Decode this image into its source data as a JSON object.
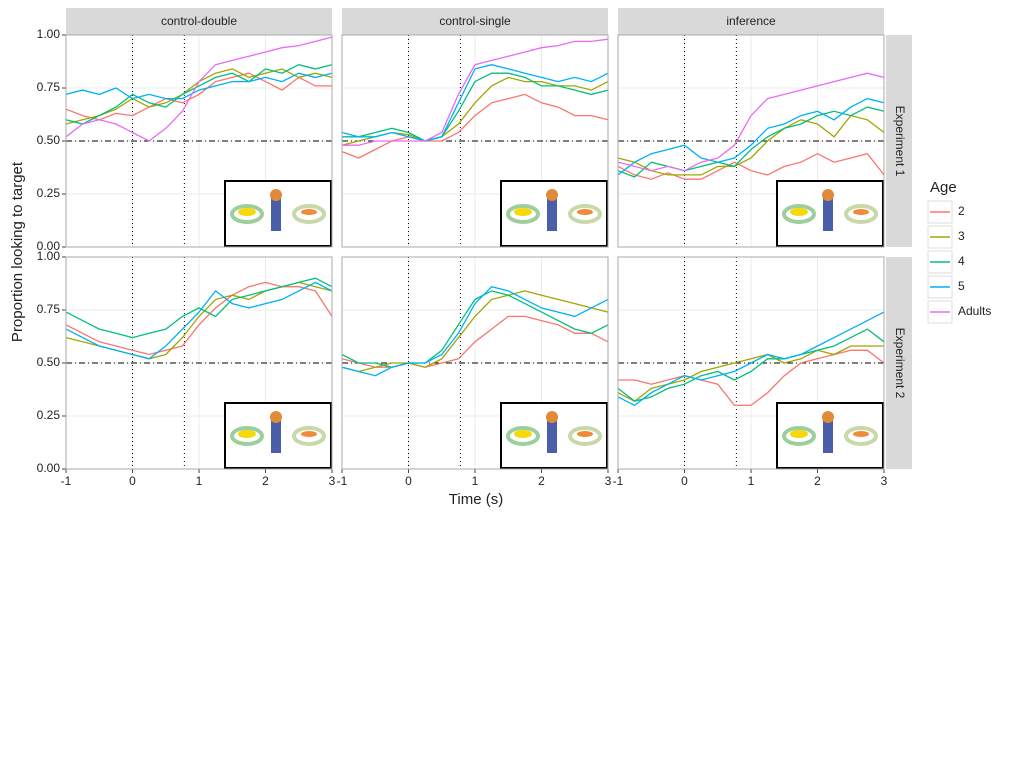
{
  "y_label": "Proportion looking to target",
  "x_label": "Time (s)",
  "facet_columns": [
    "control-double",
    "control-single",
    "inference"
  ],
  "facet_rows": [
    "Experiment 1",
    "Experiment 2"
  ],
  "legend_title": "Age",
  "reference_lines": {
    "h": 0.5,
    "v": [
      0,
      0.78
    ]
  },
  "chart_data": [
    {
      "type": "line",
      "column": 0,
      "row": 0,
      "x": [
        -1,
        -0.75,
        -0.5,
        -0.25,
        0,
        0.25,
        0.5,
        0.75,
        1,
        1.25,
        1.5,
        1.75,
        2,
        2.25,
        2.5,
        2.75,
        3
      ],
      "xlim": [
        -1,
        3
      ],
      "ylim": [
        0,
        1
      ],
      "xticks": [
        -1,
        0,
        1,
        2,
        3
      ],
      "yticks": [
        {
          "value": 0,
          "label": "0.00"
        },
        {
          "value": 0.25,
          "label": "0.25"
        },
        {
          "value": 0.5,
          "label": "0.50"
        },
        {
          "value": 0.75,
          "label": "0.75"
        },
        {
          "value": 1,
          "label": "1.00"
        }
      ],
      "series": [
        {
          "name": "2",
          "color": "#F8766D",
          "values": [
            0.65,
            0.62,
            0.6,
            0.63,
            0.62,
            0.66,
            0.7,
            0.68,
            0.72,
            0.78,
            0.8,
            0.82,
            0.78,
            0.74,
            0.8,
            0.76,
            0.76
          ]
        },
        {
          "name": "3",
          "color": "#A3A500",
          "values": [
            0.58,
            0.6,
            0.62,
            0.65,
            0.7,
            0.66,
            0.68,
            0.72,
            0.78,
            0.82,
            0.84,
            0.8,
            0.82,
            0.84,
            0.8,
            0.82,
            0.8
          ]
        },
        {
          "name": "4",
          "color": "#00BF7D",
          "values": [
            0.6,
            0.58,
            0.62,
            0.66,
            0.72,
            0.68,
            0.66,
            0.72,
            0.76,
            0.8,
            0.82,
            0.78,
            0.84,
            0.82,
            0.86,
            0.84,
            0.86
          ]
        },
        {
          "name": "5",
          "color": "#00B0F6",
          "values": [
            0.72,
            0.74,
            0.72,
            0.75,
            0.7,
            0.72,
            0.7,
            0.7,
            0.74,
            0.76,
            0.78,
            0.78,
            0.8,
            0.78,
            0.82,
            0.8,
            0.82
          ]
        },
        {
          "name": "Adults",
          "color": "#E76BF3",
          "values": [
            0.52,
            0.58,
            0.6,
            0.58,
            0.54,
            0.5,
            0.56,
            0.64,
            0.78,
            0.86,
            0.88,
            0.9,
            0.92,
            0.94,
            0.95,
            0.97,
            0.99
          ]
        }
      ]
    },
    {
      "type": "line",
      "column": 1,
      "row": 0,
      "x": [
        -1,
        -0.75,
        -0.5,
        -0.25,
        0,
        0.25,
        0.5,
        0.75,
        1,
        1.25,
        1.5,
        1.75,
        2,
        2.25,
        2.5,
        2.75,
        3
      ],
      "xlim": [
        -1,
        3
      ],
      "ylim": [
        0,
        1
      ],
      "xticks": [
        -1,
        0,
        1,
        2,
        3
      ],
      "yticks": [
        {
          "value": 0,
          "label": "0.00"
        },
        {
          "value": 0.25,
          "label": "0.25"
        },
        {
          "value": 0.5,
          "label": "0.50"
        },
        {
          "value": 0.75,
          "label": "0.75"
        },
        {
          "value": 1,
          "label": "1.00"
        }
      ],
      "series": [
        {
          "name": "2",
          "color": "#F8766D",
          "values": [
            0.45,
            0.42,
            0.46,
            0.5,
            0.52,
            0.5,
            0.5,
            0.54,
            0.62,
            0.68,
            0.7,
            0.72,
            0.68,
            0.66,
            0.62,
            0.62,
            0.6
          ]
        },
        {
          "name": "3",
          "color": "#A3A500",
          "values": [
            0.48,
            0.5,
            0.52,
            0.54,
            0.53,
            0.5,
            0.52,
            0.58,
            0.68,
            0.76,
            0.8,
            0.78,
            0.78,
            0.76,
            0.76,
            0.74,
            0.78
          ]
        },
        {
          "name": "4",
          "color": "#00BF7D",
          "values": [
            0.52,
            0.52,
            0.54,
            0.56,
            0.54,
            0.5,
            0.52,
            0.64,
            0.78,
            0.82,
            0.82,
            0.8,
            0.76,
            0.76,
            0.74,
            0.72,
            0.74
          ]
        },
        {
          "name": "5",
          "color": "#00B0F6",
          "values": [
            0.54,
            0.52,
            0.52,
            0.54,
            0.52,
            0.5,
            0.52,
            0.68,
            0.84,
            0.86,
            0.84,
            0.82,
            0.8,
            0.78,
            0.8,
            0.78,
            0.82
          ]
        },
        {
          "name": "Adults",
          "color": "#E76BF3",
          "values": [
            0.48,
            0.48,
            0.5,
            0.5,
            0.5,
            0.5,
            0.54,
            0.72,
            0.86,
            0.88,
            0.9,
            0.92,
            0.94,
            0.95,
            0.97,
            0.97,
            0.98
          ]
        }
      ]
    },
    {
      "type": "line",
      "column": 2,
      "row": 0,
      "x": [
        -1,
        -0.75,
        -0.5,
        -0.25,
        0,
        0.25,
        0.5,
        0.75,
        1,
        1.25,
        1.5,
        1.75,
        2,
        2.25,
        2.5,
        2.75,
        3
      ],
      "xlim": [
        -1,
        3
      ],
      "ylim": [
        0,
        1
      ],
      "xticks": [
        -1,
        0,
        1,
        2,
        3
      ],
      "yticks": [
        {
          "value": 0,
          "label": "0.00"
        },
        {
          "value": 0.25,
          "label": "0.25"
        },
        {
          "value": 0.5,
          "label": "0.50"
        },
        {
          "value": 0.75,
          "label": "0.75"
        },
        {
          "value": 1,
          "label": "1.00"
        }
      ],
      "series": [
        {
          "name": "2",
          "color": "#F8766D",
          "values": [
            0.38,
            0.34,
            0.32,
            0.35,
            0.32,
            0.32,
            0.36,
            0.4,
            0.36,
            0.34,
            0.38,
            0.4,
            0.44,
            0.4,
            0.42,
            0.44,
            0.34
          ]
        },
        {
          "name": "3",
          "color": "#A3A500",
          "values": [
            0.42,
            0.4,
            0.36,
            0.34,
            0.34,
            0.34,
            0.38,
            0.38,
            0.42,
            0.5,
            0.56,
            0.6,
            0.58,
            0.52,
            0.62,
            0.6,
            0.54
          ]
        },
        {
          "name": "4",
          "color": "#00BF7D",
          "values": [
            0.36,
            0.33,
            0.4,
            0.38,
            0.36,
            0.38,
            0.4,
            0.38,
            0.46,
            0.52,
            0.56,
            0.58,
            0.62,
            0.64,
            0.62,
            0.66,
            0.64
          ]
        },
        {
          "name": "5",
          "color": "#00B0F6",
          "values": [
            0.34,
            0.4,
            0.44,
            0.46,
            0.48,
            0.42,
            0.4,
            0.42,
            0.48,
            0.56,
            0.58,
            0.62,
            0.64,
            0.6,
            0.66,
            0.7,
            0.68
          ]
        },
        {
          "name": "Adults",
          "color": "#E76BF3",
          "values": [
            0.4,
            0.38,
            0.36,
            0.38,
            0.36,
            0.4,
            0.42,
            0.48,
            0.62,
            0.7,
            0.72,
            0.74,
            0.76,
            0.78,
            0.8,
            0.82,
            0.8
          ]
        }
      ]
    },
    {
      "type": "line",
      "column": 0,
      "row": 1,
      "x": [
        -1,
        -0.75,
        -0.5,
        -0.25,
        0,
        0.25,
        0.5,
        0.75,
        1,
        1.25,
        1.5,
        1.75,
        2,
        2.25,
        2.5,
        2.75,
        3
      ],
      "xlim": [
        -1,
        3
      ],
      "ylim": [
        0,
        1
      ],
      "xticks": [
        -1,
        0,
        1,
        2,
        3
      ],
      "yticks": [
        {
          "value": 0,
          "label": "0.00"
        },
        {
          "value": 0.25,
          "label": "0.25"
        },
        {
          "value": 0.5,
          "label": "0.50"
        },
        {
          "value": 0.75,
          "label": "0.75"
        },
        {
          "value": 1,
          "label": "1.00"
        }
      ],
      "series": [
        {
          "name": "2",
          "color": "#F8766D",
          "values": [
            0.68,
            0.64,
            0.6,
            0.58,
            0.56,
            0.54,
            0.56,
            0.58,
            0.68,
            0.76,
            0.82,
            0.86,
            0.88,
            0.86,
            0.86,
            0.84,
            0.72
          ]
        },
        {
          "name": "3",
          "color": "#A3A500",
          "values": [
            0.62,
            0.6,
            0.58,
            0.56,
            0.54,
            0.52,
            0.54,
            0.62,
            0.72,
            0.8,
            0.82,
            0.8,
            0.84,
            0.86,
            0.88,
            0.86,
            0.84
          ]
        },
        {
          "name": "4",
          "color": "#00BF7D",
          "values": [
            0.74,
            0.7,
            0.66,
            0.64,
            0.62,
            0.64,
            0.66,
            0.72,
            0.76,
            0.72,
            0.8,
            0.82,
            0.84,
            0.86,
            0.88,
            0.9,
            0.86
          ]
        },
        {
          "name": "5",
          "color": "#00B0F6",
          "values": [
            0.66,
            0.62,
            0.58,
            0.56,
            0.54,
            0.52,
            0.58,
            0.66,
            0.74,
            0.84,
            0.78,
            0.76,
            0.78,
            0.8,
            0.84,
            0.88,
            0.84
          ]
        }
      ]
    },
    {
      "type": "line",
      "column": 1,
      "row": 1,
      "x": [
        -1,
        -0.75,
        -0.5,
        -0.25,
        0,
        0.25,
        0.5,
        0.75,
        1,
        1.25,
        1.5,
        1.75,
        2,
        2.25,
        2.5,
        2.75,
        3
      ],
      "xlim": [
        -1,
        3
      ],
      "ylim": [
        0,
        1
      ],
      "xticks": [
        -1,
        0,
        1,
        2,
        3
      ],
      "yticks": [
        {
          "value": 0,
          "label": "0.00"
        },
        {
          "value": 0.25,
          "label": "0.25"
        },
        {
          "value": 0.5,
          "label": "0.50"
        },
        {
          "value": 0.75,
          "label": "0.75"
        },
        {
          "value": 1,
          "label": "1.00"
        }
      ],
      "series": [
        {
          "name": "2",
          "color": "#F8766D",
          "values": [
            0.52,
            0.5,
            0.48,
            0.48,
            0.5,
            0.48,
            0.5,
            0.52,
            0.6,
            0.66,
            0.72,
            0.72,
            0.7,
            0.68,
            0.64,
            0.64,
            0.6
          ]
        },
        {
          "name": "3",
          "color": "#A3A500",
          "values": [
            0.48,
            0.46,
            0.48,
            0.5,
            0.5,
            0.48,
            0.52,
            0.62,
            0.72,
            0.8,
            0.82,
            0.84,
            0.82,
            0.8,
            0.78,
            0.76,
            0.74
          ]
        },
        {
          "name": "4",
          "color": "#00BF7D",
          "values": [
            0.54,
            0.5,
            0.5,
            0.48,
            0.5,
            0.5,
            0.56,
            0.68,
            0.8,
            0.84,
            0.82,
            0.78,
            0.74,
            0.7,
            0.66,
            0.64,
            0.68
          ]
        },
        {
          "name": "5",
          "color": "#00B0F6",
          "values": [
            0.48,
            0.46,
            0.44,
            0.48,
            0.5,
            0.5,
            0.54,
            0.64,
            0.78,
            0.86,
            0.84,
            0.8,
            0.76,
            0.74,
            0.72,
            0.76,
            0.8
          ]
        }
      ]
    },
    {
      "type": "line",
      "column": 2,
      "row": 1,
      "x": [
        -1,
        -0.75,
        -0.5,
        -0.25,
        0,
        0.25,
        0.5,
        0.75,
        1,
        1.25,
        1.5,
        1.75,
        2,
        2.25,
        2.5,
        2.75,
        3
      ],
      "xlim": [
        -1,
        3
      ],
      "ylim": [
        0,
        1
      ],
      "xticks": [
        -1,
        0,
        1,
        2,
        3
      ],
      "yticks": [
        {
          "value": 0,
          "label": "0.00"
        },
        {
          "value": 0.25,
          "label": "0.25"
        },
        {
          "value": 0.5,
          "label": "0.50"
        },
        {
          "value": 0.75,
          "label": "0.75"
        },
        {
          "value": 1,
          "label": "1.00"
        }
      ],
      "series": [
        {
          "name": "2",
          "color": "#F8766D",
          "values": [
            0.42,
            0.42,
            0.4,
            0.42,
            0.44,
            0.42,
            0.4,
            0.3,
            0.3,
            0.36,
            0.44,
            0.5,
            0.52,
            0.54,
            0.56,
            0.56,
            0.5
          ]
        },
        {
          "name": "3",
          "color": "#A3A500",
          "values": [
            0.36,
            0.32,
            0.38,
            0.4,
            0.42,
            0.46,
            0.48,
            0.5,
            0.52,
            0.54,
            0.5,
            0.52,
            0.56,
            0.54,
            0.58,
            0.58,
            0.58
          ]
        },
        {
          "name": "4",
          "color": "#00BF7D",
          "values": [
            0.38,
            0.32,
            0.34,
            0.38,
            0.4,
            0.44,
            0.46,
            0.42,
            0.46,
            0.52,
            0.52,
            0.54,
            0.56,
            0.58,
            0.62,
            0.66,
            0.6
          ]
        },
        {
          "name": "5",
          "color": "#00B0F6",
          "values": [
            0.34,
            0.3,
            0.36,
            0.4,
            0.44,
            0.42,
            0.44,
            0.46,
            0.5,
            0.54,
            0.52,
            0.54,
            0.58,
            0.62,
            0.66,
            0.7,
            0.74
          ]
        }
      ]
    }
  ]
}
